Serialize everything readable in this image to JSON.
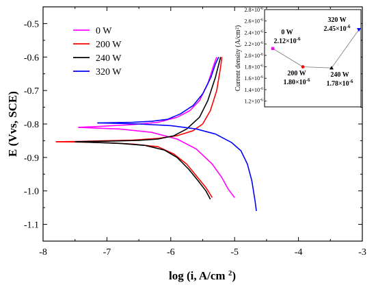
{
  "chart_data": {
    "type": "line",
    "main": {
      "xlabel": "log (i, A/cm²)",
      "ylabel": "E (Vvs, SCE)",
      "xlim": [
        -8,
        -3
      ],
      "ylim": [
        -1.15,
        -0.45
      ],
      "x_ticks": [
        "-8",
        "-7",
        "-6",
        "-5",
        "-4",
        "-3"
      ],
      "y_ticks": [
        "-0.5",
        "-0.6",
        "-0.7",
        "-0.8",
        "-0.9",
        "-1.0",
        "-1.1"
      ],
      "legend": {
        "placement": "top-left"
      },
      "series": [
        {
          "name": "0 W",
          "color": "#ff00ff",
          "anodic": [
            [
              -7.45,
              -0.81
            ],
            [
              -7.2,
              -0.808
            ],
            [
              -7.0,
              -0.806
            ],
            [
              -6.6,
              -0.802
            ],
            [
              -6.2,
              -0.795
            ],
            [
              -5.9,
              -0.78
            ],
            [
              -5.7,
              -0.76
            ],
            [
              -5.55,
              -0.73
            ],
            [
              -5.42,
              -0.68
            ],
            [
              -5.32,
              -0.62
            ],
            [
              -5.28,
              -0.6
            ]
          ],
          "cathodic": [
            [
              -7.45,
              -0.81
            ],
            [
              -7.2,
              -0.812
            ],
            [
              -6.8,
              -0.815
            ],
            [
              -6.3,
              -0.825
            ],
            [
              -5.9,
              -0.845
            ],
            [
              -5.6,
              -0.875
            ],
            [
              -5.35,
              -0.92
            ],
            [
              -5.2,
              -0.96
            ],
            [
              -5.1,
              -0.995
            ],
            [
              -5.0,
              -1.02
            ]
          ]
        },
        {
          "name": "200 W",
          "color": "#ff0000",
          "anodic": [
            [
              -7.8,
              -0.853
            ],
            [
              -7.4,
              -0.852
            ],
            [
              -7.0,
              -0.85
            ],
            [
              -6.6,
              -0.848
            ],
            [
              -6.2,
              -0.843
            ],
            [
              -5.9,
              -0.835
            ],
            [
              -5.65,
              -0.82
            ],
            [
              -5.5,
              -0.8
            ],
            [
              -5.38,
              -0.76
            ],
            [
              -5.28,
              -0.7
            ],
            [
              -5.22,
              -0.63
            ],
            [
              -5.2,
              -0.6
            ]
          ],
          "cathodic": [
            [
              -7.8,
              -0.853
            ],
            [
              -7.4,
              -0.854
            ],
            [
              -7.0,
              -0.856
            ],
            [
              -6.6,
              -0.86
            ],
            [
              -6.2,
              -0.868
            ],
            [
              -5.95,
              -0.89
            ],
            [
              -5.75,
              -0.92
            ],
            [
              -5.6,
              -0.955
            ],
            [
              -5.45,
              -0.99
            ],
            [
              -5.35,
              -1.02
            ]
          ]
        },
        {
          "name": "240 W",
          "color": "#000000",
          "anodic": [
            [
              -7.5,
              -0.853
            ],
            [
              -7.2,
              -0.852
            ],
            [
              -6.9,
              -0.851
            ],
            [
              -6.5,
              -0.849
            ],
            [
              -6.2,
              -0.845
            ],
            [
              -5.95,
              -0.835
            ],
            [
              -5.75,
              -0.815
            ],
            [
              -5.55,
              -0.78
            ],
            [
              -5.42,
              -0.73
            ],
            [
              -5.3,
              -0.66
            ],
            [
              -5.22,
              -0.6
            ]
          ],
          "cathodic": [
            [
              -7.5,
              -0.853
            ],
            [
              -7.2,
              -0.855
            ],
            [
              -6.8,
              -0.858
            ],
            [
              -6.4,
              -0.864
            ],
            [
              -6.1,
              -0.878
            ],
            [
              -5.9,
              -0.9
            ],
            [
              -5.72,
              -0.935
            ],
            [
              -5.57,
              -0.97
            ],
            [
              -5.45,
              -1.0
            ],
            [
              -5.38,
              -1.025
            ]
          ]
        },
        {
          "name": "320 W",
          "color": "#0000ff",
          "anodic": [
            [
              -7.15,
              -0.797
            ],
            [
              -6.9,
              -0.796
            ],
            [
              -6.6,
              -0.795
            ],
            [
              -6.3,
              -0.792
            ],
            [
              -6.05,
              -0.786
            ],
            [
              -5.85,
              -0.77
            ],
            [
              -5.65,
              -0.745
            ],
            [
              -5.5,
              -0.71
            ],
            [
              -5.37,
              -0.66
            ],
            [
              -5.3,
              -0.62
            ],
            [
              -5.25,
              -0.6
            ]
          ],
          "cathodic": [
            [
              -7.15,
              -0.797
            ],
            [
              -6.9,
              -0.798
            ],
            [
              -6.5,
              -0.8
            ],
            [
              -6.0,
              -0.805
            ],
            [
              -5.6,
              -0.815
            ],
            [
              -5.3,
              -0.83
            ],
            [
              -5.05,
              -0.855
            ],
            [
              -4.9,
              -0.88
            ],
            [
              -4.8,
              -0.92
            ],
            [
              -4.73,
              -0.97
            ],
            [
              -4.68,
              -1.03
            ],
            [
              -4.66,
              -1.06
            ]
          ]
        }
      ]
    },
    "inset": {
      "type": "line",
      "ylabel": "Current density (A/cm²)",
      "ylim_e6": [
        1.1,
        2.8
      ],
      "y_ticks_e6": [
        1.2,
        1.4,
        1.6,
        1.8,
        2.0,
        2.2,
        2.4,
        2.6,
        2.8
      ],
      "points": [
        {
          "label": "0 W",
          "value_label": "2.12×10",
          "exp": "-6",
          "value_e6": 2.12,
          "color": "#ff00ff",
          "marker": "square"
        },
        {
          "label": "200 W",
          "value_label": "1.80×10",
          "exp": "-6",
          "value_e6": 1.8,
          "color": "#ff0000",
          "marker": "circle"
        },
        {
          "label": "240 W",
          "value_label": "1.78×10",
          "exp": "-6",
          "value_e6": 1.78,
          "color": "#000000",
          "marker": "triangle-up"
        },
        {
          "label": "320 W",
          "value_label": "2.45×10",
          "exp": "-6",
          "value_e6": 2.45,
          "color": "#0000ff",
          "marker": "triangle-down"
        }
      ],
      "line_color": "#808080"
    }
  }
}
